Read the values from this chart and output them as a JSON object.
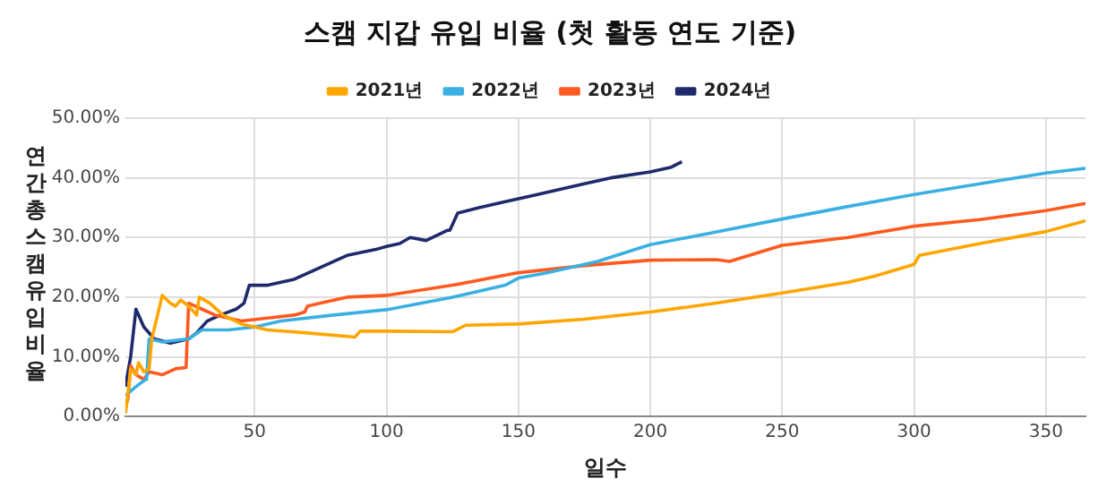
{
  "chart_data": {
    "type": "line",
    "title": "스캠 지갑 유입 비율 (첫 활동 연도 기준)",
    "xlabel": "일수",
    "ylabel": "연간 총 스캠 유입 비율",
    "legend": "top",
    "grid": true,
    "marker": "none",
    "line_style": "solid",
    "xlim": [
      1,
      365
    ],
    "xticks": [
      50,
      100,
      150,
      200,
      250,
      300,
      350
    ],
    "ylim": [
      0,
      50
    ],
    "yticks": [
      {
        "value": 0,
        "label": "0.00%"
      },
      {
        "value": 10,
        "label": "10.00%"
      },
      {
        "value": 20,
        "label": "20.00%"
      },
      {
        "value": 30,
        "label": "30.00%"
      },
      {
        "value": 40,
        "label": "40.00%"
      },
      {
        "value": 50,
        "label": "50.00%"
      }
    ],
    "series": [
      {
        "name": "2021년",
        "color": "#ffa500",
        "x": [
          1,
          2,
          3,
          5,
          6,
          8,
          10,
          11,
          15,
          18,
          20,
          22,
          25,
          28,
          29,
          33,
          38,
          45,
          55,
          70,
          88,
          90,
          100,
          125,
          130,
          150,
          175,
          200,
          225,
          250,
          275,
          285,
          300,
          302,
          325,
          350,
          365
        ],
        "values": [
          0.5,
          4,
          8,
          7,
          9,
          7.5,
          8,
          13,
          20.3,
          19,
          18.5,
          19.5,
          18.5,
          17,
          20,
          19,
          17,
          15.5,
          14.5,
          14,
          13.3,
          14.3,
          14.3,
          14.2,
          15.3,
          15.5,
          16.3,
          17.5,
          19,
          20.7,
          22.5,
          23.5,
          25.5,
          27,
          29,
          31,
          32.8
        ]
      },
      {
        "name": "2022년",
        "color": "#3ab0e2",
        "x": [
          1,
          5,
          8,
          9,
          10,
          15,
          25,
          30,
          40,
          50,
          60,
          80,
          100,
          125,
          145,
          150,
          160,
          180,
          200,
          220,
          250,
          275,
          300,
          325,
          350,
          365
        ],
        "values": [
          3.5,
          5,
          6,
          6.2,
          13,
          12.5,
          13,
          14.5,
          14.5,
          15,
          16,
          17,
          17.9,
          20,
          22,
          23.2,
          24,
          26,
          28.8,
          30.5,
          33.1,
          35.2,
          37.2,
          39,
          40.8,
          41.6
        ]
      },
      {
        "name": "2023년",
        "color": "#ff5a1f",
        "x": [
          1,
          2,
          3,
          5,
          8,
          10,
          15,
          20,
          24,
          25,
          30,
          35,
          45,
          55,
          65,
          69,
          70,
          75,
          85,
          100,
          125,
          150,
          175,
          200,
          225,
          230,
          250,
          275,
          300,
          325,
          350,
          365
        ],
        "values": [
          1.5,
          3,
          8.5,
          7,
          6.2,
          7.5,
          7,
          8,
          8.2,
          19,
          18,
          17,
          16,
          16.5,
          17,
          17.5,
          18.5,
          19,
          20,
          20.3,
          22,
          24.1,
          25.3,
          26.2,
          26.3,
          26,
          28.7,
          30,
          31.9,
          33,
          34.5,
          35.7
        ]
      },
      {
        "name": "2024년",
        "color": "#1f2a6b",
        "x": [
          1,
          3,
          5,
          8,
          12,
          18,
          25,
          28,
          32,
          37,
          43,
          46,
          48,
          55,
          65,
          75,
          85,
          96,
          100,
          105,
          109,
          115,
          123,
          124,
          127,
          135,
          145,
          155,
          165,
          175,
          185,
          200,
          208,
          212
        ],
        "values": [
          5,
          10,
          18,
          15,
          13,
          12.3,
          13,
          14,
          16,
          17,
          18,
          19,
          22,
          22,
          23,
          25,
          27,
          28,
          28.5,
          29,
          30,
          29.5,
          31.2,
          31.2,
          34.1,
          35,
          36,
          37,
          38,
          39,
          40,
          41,
          41.8,
          42.7
        ]
      }
    ]
  }
}
